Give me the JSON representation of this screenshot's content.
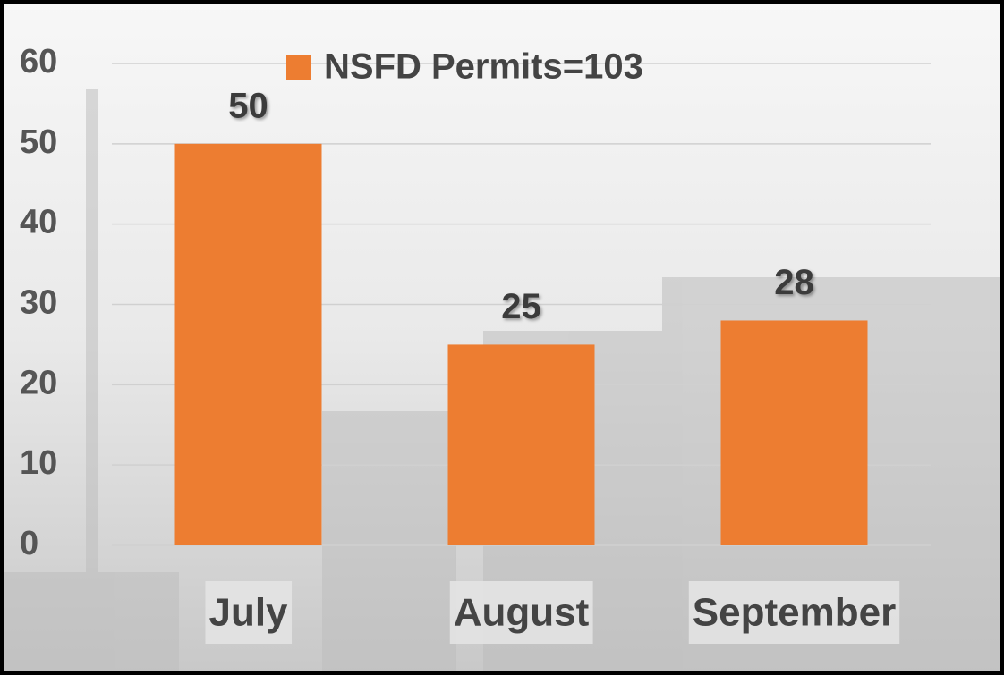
{
  "chart_data": {
    "type": "bar",
    "categories": [
      "July",
      "August",
      "September"
    ],
    "series": [
      {
        "name": "NSFD Permits=103",
        "color": "#ed7d31",
        "values": [
          50,
          25,
          28
        ]
      }
    ],
    "ylim": [
      0,
      60
    ],
    "yticks": [
      0,
      10,
      20,
      30,
      40,
      50,
      60
    ],
    "grid": true,
    "legend": "top"
  }
}
